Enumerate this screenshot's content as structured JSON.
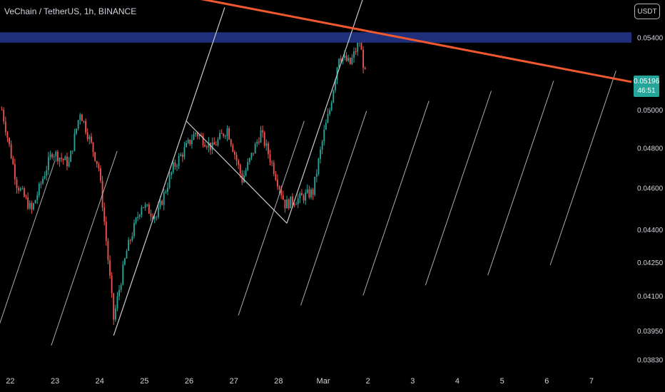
{
  "header": {
    "title": "VeChain / TetherUS, 1h, BINANCE"
  },
  "toolbar": {
    "currency_label": "USDT"
  },
  "price_tag": {
    "price": "0.05196",
    "countdown": "46:51",
    "color": "#26a69a"
  },
  "colors": {
    "up": "#26a69a",
    "down": "#ef5350",
    "background": "#000000",
    "trendline": "#f0582f",
    "zone": "#1f2f7a",
    "drawing": "#c9cbd1"
  },
  "chart_data": {
    "type": "candlestick",
    "title": "",
    "yscale": "log",
    "ylim": [
      0.0378,
      0.0562
    ],
    "y_ticks": [
      "0.05400",
      "0.05000",
      "0.04800",
      "0.04600",
      "0.04400",
      "0.04250",
      "0.04100",
      "0.03950",
      "0.03830"
    ],
    "x_ticks": [
      "22",
      "23",
      "24",
      "25",
      "26",
      "27",
      "28",
      "Mar",
      "2",
      "3",
      "4",
      "5",
      "6",
      "7"
    ],
    "x_domain": [
      "Feb 21 20:00",
      "Mar 7 23:00"
    ],
    "last_price": 0.05196,
    "resistance_zone": [
      0.0537,
      0.0543
    ],
    "trend_line": {
      "from": [
        "Feb 26 06:00",
        0.0563
      ],
      "to": [
        "Mar 7 23:00",
        0.0515
      ]
    },
    "channel": {
      "anchors": [
        [
          "Feb 24 09:00",
          0.0393
        ],
        [
          "Feb 26 00:00",
          0.0494
        ],
        [
          "Feb 28 06:00",
          0.0443
        ]
      ]
    },
    "pivot_path": [
      [
        "Feb 21 21:00",
        0.05
      ],
      [
        "Feb 22 05:00",
        0.0462
      ],
      [
        "Feb 22 13:00",
        0.0449
      ],
      [
        "Feb 23 00:00",
        0.0478
      ],
      [
        "Feb 23 09:00",
        0.0472
      ],
      [
        "Feb 23 15:00",
        0.0499
      ],
      [
        "Feb 24 01:00",
        0.047
      ],
      [
        "Feb 24 09:00",
        0.04
      ],
      [
        "Feb 24 16:00",
        0.043
      ],
      [
        "Feb 25 00:00",
        0.0452
      ],
      [
        "Feb 25 08:00",
        0.0446
      ],
      [
        "Feb 25 17:00",
        0.047
      ],
      [
        "Feb 26 05:00",
        0.0488
      ],
      [
        "Feb 26 14:00",
        0.048
      ],
      [
        "Feb 26 22:00",
        0.049
      ],
      [
        "Feb 27 06:00",
        0.0464
      ],
      [
        "Feb 27 16:00",
        0.0488
      ],
      [
        "Feb 27 22:00",
        0.0472
      ],
      [
        "Feb 28 05:00",
        0.0452
      ],
      [
        "Feb 28 13:00",
        0.0455
      ],
      [
        "Feb 28 20:00",
        0.0458
      ],
      [
        "Mar 1 02:00",
        0.0488
      ],
      [
        "Mar 1 05:00",
        0.05
      ],
      [
        "Mar 1 10:00",
        0.053
      ],
      [
        "Mar 1 16:00",
        0.0525
      ],
      [
        "Mar 1 21:00",
        0.0538
      ],
      [
        "Mar 2 00:00",
        0.0519
      ]
    ]
  }
}
